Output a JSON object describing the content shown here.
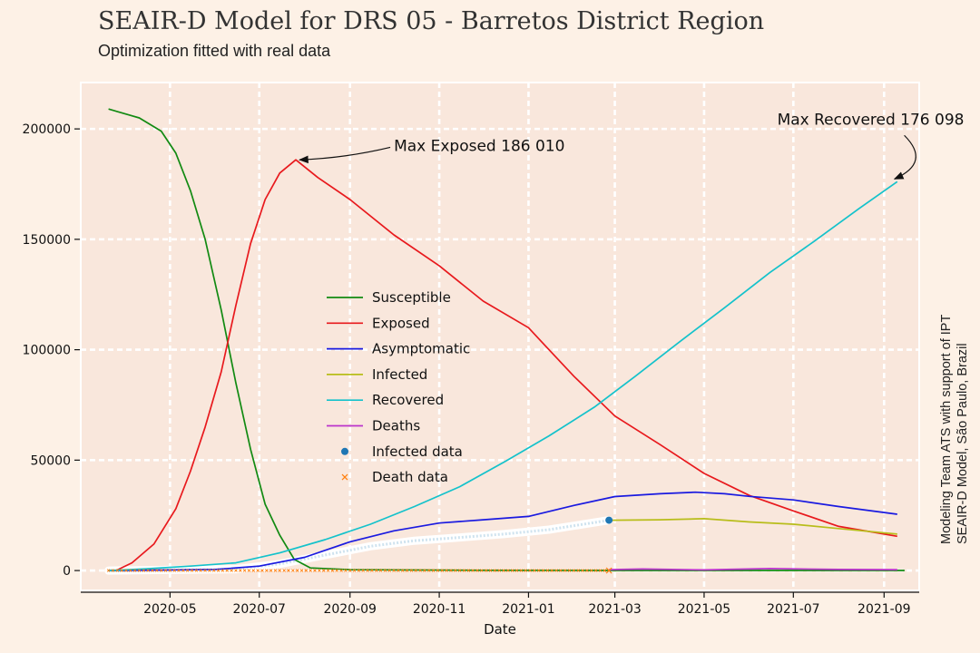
{
  "chart_data": {
    "type": "line",
    "title": "SEAIR-D Model for DRS 05 - Barretos District Region",
    "subtitle": "Optimization fitted with real data",
    "xlabel": "Date",
    "ylabel": "",
    "x_range": [
      "2020-03-01",
      "2021-09-25"
    ],
    "ylim": [
      -9000,
      221000
    ],
    "yticks": [
      0,
      50000,
      100000,
      150000,
      200000
    ],
    "xticks": [
      "2020-05",
      "2020-07",
      "2020-09",
      "2020-11",
      "2021-01",
      "2021-03",
      "2021-05",
      "2021-07",
      "2021-09"
    ],
    "grid": true,
    "legend": "center",
    "side_note": [
      "Modeling Team ATS with support of IPT",
      "SEAIR-D Model, São Paulo, Brazil"
    ],
    "annotations": [
      {
        "text": "Max Exposed 186 010",
        "x": "2020-07-26",
        "y": 186010,
        "text_x": "2020-10-01",
        "text_y": 190000
      },
      {
        "text": "Max Recovered 176 098",
        "x": "2021-09-10",
        "y": 176098,
        "text_x": "2021-06-20",
        "text_y": 202000
      }
    ],
    "series": [
      {
        "name": "Susceptible",
        "color": "#128a12",
        "points": [
          [
            "2020-03-20",
            209000
          ],
          [
            "2020-04-10",
            205000
          ],
          [
            "2020-04-25",
            199000
          ],
          [
            "2020-05-05",
            189000
          ],
          [
            "2020-05-15",
            172000
          ],
          [
            "2020-05-25",
            150000
          ],
          [
            "2020-06-05",
            118000
          ],
          [
            "2020-06-15",
            85000
          ],
          [
            "2020-06-25",
            55000
          ],
          [
            "2020-07-05",
            30000
          ],
          [
            "2020-07-15",
            16000
          ],
          [
            "2020-07-25",
            5000
          ],
          [
            "2020-08-05",
            1200
          ],
          [
            "2020-09-01",
            400
          ],
          [
            "2020-12-01",
            100
          ],
          [
            "2021-03-01",
            50
          ],
          [
            "2021-09-15",
            30
          ]
        ]
      },
      {
        "name": "Exposed",
        "color": "#e8191d",
        "points": [
          [
            "2020-03-25",
            0
          ],
          [
            "2020-04-05",
            3500
          ],
          [
            "2020-04-20",
            12000
          ],
          [
            "2020-05-05",
            28000
          ],
          [
            "2020-05-15",
            45000
          ],
          [
            "2020-05-25",
            65000
          ],
          [
            "2020-06-05",
            90000
          ],
          [
            "2020-06-15",
            120000
          ],
          [
            "2020-06-25",
            148000
          ],
          [
            "2020-07-05",
            168000
          ],
          [
            "2020-07-15",
            180000
          ],
          [
            "2020-07-26",
            186010
          ],
          [
            "2020-08-10",
            178000
          ],
          [
            "2020-09-01",
            168000
          ],
          [
            "2020-10-01",
            152000
          ],
          [
            "2020-11-01",
            138000
          ],
          [
            "2020-12-01",
            122000
          ],
          [
            "2021-01-01",
            110000
          ],
          [
            "2021-01-15",
            100000
          ],
          [
            "2021-02-01",
            88000
          ],
          [
            "2021-03-01",
            70000
          ],
          [
            "2021-04-01",
            57000
          ],
          [
            "2021-05-01",
            44000
          ],
          [
            "2021-06-01",
            34000
          ],
          [
            "2021-07-01",
            27000
          ],
          [
            "2021-08-01",
            20000
          ],
          [
            "2021-09-10",
            15500
          ]
        ]
      },
      {
        "name": "Asymptomatic",
        "color": "#1a1ae0",
        "points": [
          [
            "2020-03-20",
            0
          ],
          [
            "2020-06-01",
            500
          ],
          [
            "2020-07-01",
            2000
          ],
          [
            "2020-08-01",
            6000
          ],
          [
            "2020-09-01",
            13000
          ],
          [
            "2020-10-01",
            18000
          ],
          [
            "2020-11-01",
            21500
          ],
          [
            "2020-12-01",
            23000
          ],
          [
            "2021-01-01",
            24500
          ],
          [
            "2021-02-01",
            29500
          ],
          [
            "2021-03-01",
            33500
          ],
          [
            "2021-04-01",
            34800
          ],
          [
            "2021-04-25",
            35500
          ],
          [
            "2021-05-15",
            34800
          ],
          [
            "2021-06-01",
            33600
          ],
          [
            "2021-07-01",
            32000
          ],
          [
            "2021-08-01",
            29000
          ],
          [
            "2021-09-10",
            25500
          ]
        ]
      },
      {
        "name": "Infected",
        "color": "#b8bd1a",
        "points": [
          [
            "2021-02-25",
            22800
          ],
          [
            "2021-04-01",
            23000
          ],
          [
            "2021-05-01",
            23500
          ],
          [
            "2021-06-01",
            22000
          ],
          [
            "2021-07-01",
            21000
          ],
          [
            "2021-08-01",
            19000
          ],
          [
            "2021-09-10",
            16500
          ]
        ]
      },
      {
        "name": "Recovered",
        "color": "#14c2cb",
        "points": [
          [
            "2020-03-20",
            0
          ],
          [
            "2020-04-15",
            800
          ],
          [
            "2020-05-15",
            2000
          ],
          [
            "2020-06-15",
            3500
          ],
          [
            "2020-07-15",
            8000
          ],
          [
            "2020-08-15",
            14000
          ],
          [
            "2020-09-15",
            21000
          ],
          [
            "2020-10-15",
            29000
          ],
          [
            "2020-11-15",
            38000
          ],
          [
            "2020-12-15",
            49000
          ],
          [
            "2021-01-15",
            61000
          ],
          [
            "2021-02-15",
            74000
          ],
          [
            "2021-03-15",
            88000
          ],
          [
            "2021-04-15",
            104000
          ],
          [
            "2021-05-15",
            119000
          ],
          [
            "2021-06-15",
            135000
          ],
          [
            "2021-07-15",
            149000
          ],
          [
            "2021-08-15",
            164000
          ],
          [
            "2021-09-10",
            176098
          ]
        ]
      },
      {
        "name": "Deaths",
        "color": "#bb33cc",
        "points": [
          [
            "2021-02-25",
            400
          ],
          [
            "2021-03-20",
            700
          ],
          [
            "2021-05-01",
            300
          ],
          [
            "2021-06-15",
            900
          ],
          [
            "2021-08-01",
            500
          ],
          [
            "2021-09-10",
            400
          ]
        ]
      }
    ],
    "scatter": [
      {
        "name": "Infected data",
        "color": "#1f77b4",
        "marker": "dot"
      },
      {
        "name": "Death data",
        "color": "#ff7f0e",
        "marker": "x"
      }
    ]
  }
}
